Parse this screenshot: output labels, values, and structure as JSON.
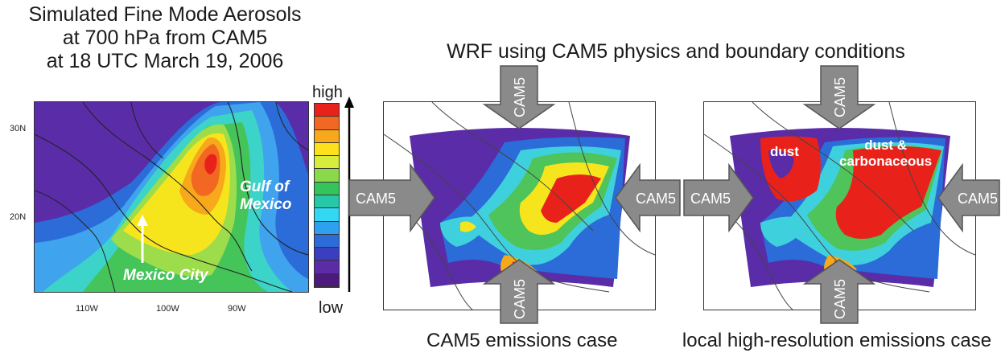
{
  "left_panel": {
    "title_lines": [
      "Simulated Fine Mode Aerosols",
      "at 700 hPa from CAM5",
      "at 18 UTC March 19, 2006"
    ],
    "lat_ticks": [
      "30N",
      "20N"
    ],
    "lon_ticks": [
      "110W",
      "100W",
      "90W"
    ],
    "gulf_label_line1": "Gulf of",
    "gulf_label_line2": "Mexico",
    "city_label": "Mexico City"
  },
  "colorbar": {
    "high_label": "high",
    "low_label": "low",
    "colors": [
      "#e8221a",
      "#f26722",
      "#f7a81b",
      "#fde11d",
      "#d6ee3b",
      "#8bd94a",
      "#35c45a",
      "#26c8a8",
      "#32d7f2",
      "#2ea0f0",
      "#2b6cd8",
      "#3a3fbf",
      "#5b2ca6",
      "#4b1a7c"
    ]
  },
  "right_panels": {
    "title": "WRF using CAM5 physics and boundary conditions",
    "arrow_label": "CAM5",
    "case1_caption": "CAM5 emissions case",
    "case2_caption": "local high-resolution emissions case",
    "dust_label": "dust",
    "dust_carb_line1": "dust &",
    "dust_carb_line2": "carbonaceous"
  }
}
